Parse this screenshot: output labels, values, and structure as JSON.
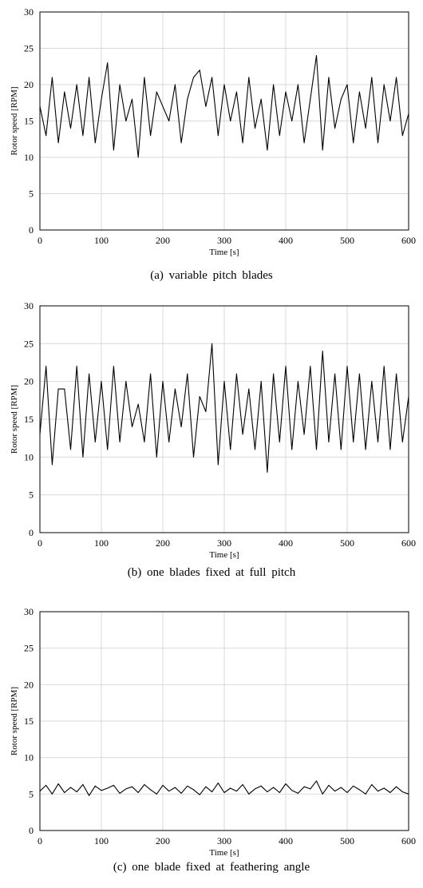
{
  "chart_data": [
    {
      "type": "line",
      "caption": "(a)  variable  pitch  blades",
      "xlabel": "Time [s]",
      "ylabel": "Rotor speed [RPM]",
      "xlim": [
        0,
        600
      ],
      "ylim": [
        0,
        30
      ],
      "xticks": [
        0,
        100,
        200,
        300,
        400,
        500,
        600
      ],
      "yticks": [
        0,
        5,
        10,
        15,
        20,
        25,
        30
      ],
      "grid": true,
      "series": [
        {
          "x": [
            0,
            10,
            20,
            30,
            40,
            50,
            60,
            70,
            80,
            90,
            100,
            110,
            120,
            130,
            140,
            150,
            160,
            170,
            180,
            190,
            200,
            210,
            220,
            230,
            240,
            250,
            260,
            270,
            280,
            290,
            300,
            310,
            320,
            330,
            340,
            350,
            360,
            370,
            380,
            390,
            400,
            410,
            420,
            430,
            440,
            450,
            460,
            470,
            480,
            490,
            500,
            510,
            520,
            530,
            540,
            550,
            560,
            570,
            580,
            590,
            600
          ],
          "y": [
            17,
            13,
            21,
            12,
            19,
            14,
            20,
            13,
            21,
            12,
            18,
            23,
            11,
            20,
            15,
            18,
            10,
            21,
            13,
            19,
            17,
            15,
            20,
            12,
            18,
            21,
            22,
            17,
            21,
            13,
            20,
            15,
            19,
            12,
            21,
            14,
            18,
            11,
            20,
            13,
            19,
            15,
            20,
            12,
            18,
            24,
            11,
            21,
            14,
            18,
            20,
            12,
            19,
            14,
            21,
            12,
            20,
            15,
            21,
            13,
            16
          ]
        }
      ]
    },
    {
      "type": "line",
      "caption": "(b)  one  blades  fixed  at  full  pitch",
      "xlabel": "Time [s]",
      "ylabel": "Rotor speed [RPM]",
      "xlim": [
        0,
        600
      ],
      "ylim": [
        0,
        30
      ],
      "xticks": [
        0,
        100,
        200,
        300,
        400,
        500,
        600
      ],
      "yticks": [
        0,
        5,
        10,
        15,
        20,
        25,
        30
      ],
      "grid": true,
      "series": [
        {
          "x": [
            0,
            10,
            20,
            30,
            40,
            50,
            60,
            70,
            80,
            90,
            100,
            110,
            120,
            130,
            140,
            150,
            160,
            170,
            180,
            190,
            200,
            210,
            220,
            230,
            240,
            250,
            260,
            270,
            280,
            290,
            300,
            310,
            320,
            330,
            340,
            350,
            360,
            370,
            380,
            390,
            400,
            410,
            420,
            430,
            440,
            450,
            460,
            470,
            480,
            490,
            500,
            510,
            520,
            530,
            540,
            550,
            560,
            570,
            580,
            590,
            600
          ],
          "y": [
            13,
            22,
            9,
            19,
            19,
            11,
            22,
            10,
            21,
            12,
            20,
            11,
            22,
            12,
            20,
            14,
            17,
            12,
            21,
            10,
            20,
            12,
            19,
            14,
            21,
            10,
            18,
            16,
            25,
            9,
            20,
            11,
            21,
            13,
            19,
            11,
            20,
            8,
            21,
            12,
            22,
            11,
            20,
            13,
            22,
            11,
            24,
            12,
            21,
            11,
            22,
            12,
            21,
            11,
            20,
            12,
            22,
            11,
            21,
            12,
            18
          ]
        }
      ]
    },
    {
      "type": "line",
      "caption": "(c)  one  blade  fixed  at  feathering  angle",
      "xlabel": "Time [s]",
      "ylabel": "Rotor speed [RPM]",
      "xlim": [
        0,
        600
      ],
      "ylim": [
        0,
        30
      ],
      "xticks": [
        0,
        100,
        200,
        300,
        400,
        500,
        600
      ],
      "yticks": [
        0,
        5,
        10,
        15,
        20,
        25,
        30
      ],
      "grid": true,
      "series": [
        {
          "x": [
            0,
            10,
            20,
            30,
            40,
            50,
            60,
            70,
            80,
            90,
            100,
            110,
            120,
            130,
            140,
            150,
            160,
            170,
            180,
            190,
            200,
            210,
            220,
            230,
            240,
            250,
            260,
            270,
            280,
            290,
            300,
            310,
            320,
            330,
            340,
            350,
            360,
            370,
            380,
            390,
            400,
            410,
            420,
            430,
            440,
            450,
            460,
            470,
            480,
            490,
            500,
            510,
            520,
            530,
            540,
            550,
            560,
            570,
            580,
            590,
            600
          ],
          "y": [
            5.4,
            6.2,
            5.0,
            6.4,
            5.2,
            5.9,
            5.3,
            6.3,
            4.8,
            6.1,
            5.5,
            5.8,
            6.2,
            5.1,
            5.7,
            6.0,
            5.2,
            6.3,
            5.6,
            5.0,
            6.2,
            5.4,
            5.9,
            5.1,
            6.1,
            5.6,
            4.9,
            6.0,
            5.3,
            6.5,
            5.2,
            5.8,
            5.4,
            6.3,
            5.0,
            5.7,
            6.1,
            5.3,
            5.9,
            5.2,
            6.4,
            5.5,
            5.1,
            6.0,
            5.7,
            6.8,
            5.0,
            6.2,
            5.4,
            5.9,
            5.2,
            6.1,
            5.6,
            5.0,
            6.3,
            5.4,
            5.8,
            5.2,
            6.0,
            5.3,
            5.0
          ]
        }
      ]
    }
  ]
}
